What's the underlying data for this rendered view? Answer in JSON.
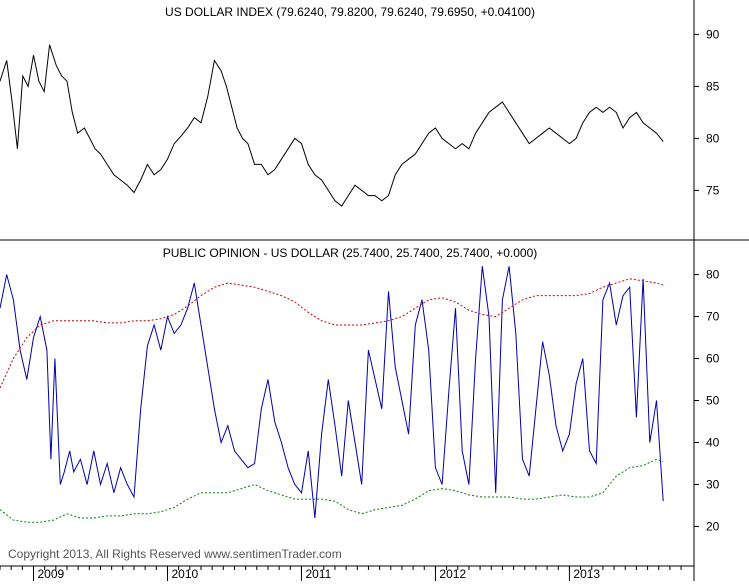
{
  "copyright": "Copyright 2013, All Rights Reserved  www.sentimenTrader.com",
  "chart_data": [
    {
      "type": "line",
      "title": "US DOLLAR INDEX (79.6240, 79.8200, 79.6240, 79.6950, +0.04100)",
      "ylim": [
        71,
        91
      ],
      "yticks": [
        75,
        80,
        85,
        90
      ],
      "xlim": [
        2008.75,
        2013.9
      ],
      "x_tick_labels": [
        "2009",
        "2010",
        "2011",
        "2012",
        "2013"
      ],
      "x_ticks": [
        2009,
        2010,
        2011,
        2012,
        2013
      ],
      "grid": false,
      "series": [
        {
          "color": "#000000",
          "x": [
            2008.75,
            2008.8,
            2008.84,
            2008.88,
            2008.92,
            2008.96,
            2009.0,
            2009.04,
            2009.08,
            2009.12,
            2009.17,
            2009.21,
            2009.25,
            2009.29,
            2009.33,
            2009.38,
            2009.42,
            2009.46,
            2009.5,
            2009.55,
            2009.6,
            2009.65,
            2009.7,
            2009.75,
            2009.8,
            2009.85,
            2009.9,
            2009.95,
            2010.0,
            2010.05,
            2010.1,
            2010.15,
            2010.2,
            2010.25,
            2010.3,
            2010.35,
            2010.4,
            2010.44,
            2010.48,
            2010.52,
            2010.56,
            2010.6,
            2010.65,
            2010.7,
            2010.75,
            2010.8,
            2010.85,
            2010.9,
            2010.95,
            2011.0,
            2011.05,
            2011.1,
            2011.15,
            2011.2,
            2011.25,
            2011.3,
            2011.35,
            2011.4,
            2011.45,
            2011.5,
            2011.55,
            2011.6,
            2011.65,
            2011.7,
            2011.75,
            2011.8,
            2011.85,
            2011.9,
            2011.95,
            2012.0,
            2012.05,
            2012.1,
            2012.15,
            2012.2,
            2012.25,
            2012.3,
            2012.35,
            2012.4,
            2012.45,
            2012.5,
            2012.55,
            2012.6,
            2012.65,
            2012.7,
            2012.75,
            2012.8,
            2012.85,
            2012.9,
            2012.95,
            2013.0,
            2013.05,
            2013.1,
            2013.15,
            2013.2,
            2013.25,
            2013.3,
            2013.35,
            2013.4,
            2013.45,
            2013.5,
            2013.55,
            2013.6,
            2013.65,
            2013.7
          ],
          "values": [
            85.5,
            87.5,
            83.5,
            79.0,
            86.0,
            85.0,
            88.0,
            85.5,
            84.5,
            89.0,
            87.0,
            86.0,
            85.5,
            82.5,
            80.5,
            81.0,
            80.0,
            79.0,
            78.5,
            77.5,
            76.5,
            76.0,
            75.5,
            74.8,
            76.0,
            77.5,
            76.5,
            77.0,
            78.0,
            79.5,
            80.2,
            81.0,
            82.0,
            81.5,
            84.0,
            87.5,
            86.5,
            85.0,
            83.0,
            81.0,
            80.0,
            79.5,
            77.5,
            77.5,
            76.5,
            77.0,
            78.0,
            79.0,
            80.0,
            79.5,
            77.5,
            76.5,
            76.0,
            75.0,
            74.0,
            73.5,
            74.5,
            75.5,
            75.0,
            74.5,
            74.5,
            74.0,
            74.5,
            76.5,
            77.5,
            78.0,
            78.5,
            79.5,
            80.5,
            81.0,
            80.0,
            79.5,
            79.0,
            79.5,
            79.0,
            80.5,
            81.5,
            82.5,
            83.0,
            83.5,
            82.5,
            81.5,
            80.5,
            79.5,
            80.0,
            80.5,
            81.0,
            80.5,
            80.0,
            79.5,
            80.0,
            81.5,
            82.5,
            83.0,
            82.5,
            83.0,
            82.5,
            81.0,
            82.0,
            82.5,
            81.5,
            81.0,
            80.5,
            79.7
          ]
        }
      ]
    },
    {
      "type": "line",
      "title": "PUBLIC OPINION - US DOLLAR (25.7400, 25.7400, 25.7400, +0.000)",
      "ylim": [
        12,
        83
      ],
      "yticks": [
        20,
        30,
        40,
        50,
        60,
        70,
        80
      ],
      "xlim": [
        2008.75,
        2013.9
      ],
      "x_tick_labels": [
        "2009",
        "2010",
        "2011",
        "2012",
        "2013"
      ],
      "x_ticks": [
        2009,
        2010,
        2011,
        2012,
        2013
      ],
      "grid": false,
      "series": [
        {
          "color": "#0000aa",
          "dashed": false,
          "x": [
            2008.75,
            2008.8,
            2008.85,
            2008.9,
            2008.95,
            2009.0,
            2009.05,
            2009.1,
            2009.13,
            2009.16,
            2009.2,
            2009.23,
            2009.27,
            2009.3,
            2009.35,
            2009.4,
            2009.45,
            2009.5,
            2009.55,
            2009.6,
            2009.65,
            2009.7,
            2009.75,
            2009.8,
            2009.85,
            2009.9,
            2009.95,
            2010.0,
            2010.05,
            2010.1,
            2010.15,
            2010.2,
            2010.25,
            2010.3,
            2010.35,
            2010.4,
            2010.45,
            2010.5,
            2010.55,
            2010.6,
            2010.65,
            2010.7,
            2010.75,
            2010.8,
            2010.85,
            2010.9,
            2010.95,
            2011.0,
            2011.05,
            2011.1,
            2011.15,
            2011.2,
            2011.25,
            2011.3,
            2011.35,
            2011.4,
            2011.45,
            2011.5,
            2011.55,
            2011.6,
            2011.65,
            2011.7,
            2011.75,
            2011.8,
            2011.85,
            2011.9,
            2011.95,
            2012.0,
            2012.05,
            2012.1,
            2012.15,
            2012.2,
            2012.25,
            2012.3,
            2012.35,
            2012.4,
            2012.45,
            2012.5,
            2012.55,
            2012.6,
            2012.65,
            2012.7,
            2012.75,
            2012.8,
            2012.85,
            2012.9,
            2012.95,
            2013.0,
            2013.05,
            2013.1,
            2013.15,
            2013.2,
            2013.25,
            2013.3,
            2013.35,
            2013.4,
            2013.45,
            2013.5,
            2013.55,
            2013.6,
            2013.65,
            2013.7
          ],
          "values": [
            72,
            80,
            74,
            62,
            55,
            65,
            70,
            62,
            36,
            60,
            30,
            33,
            38,
            33,
            36,
            30,
            38,
            30,
            35,
            28,
            34,
            30,
            27,
            48,
            63,
            68,
            62,
            70,
            66,
            68,
            72,
            78,
            68,
            58,
            48,
            40,
            44,
            38,
            36,
            34,
            35,
            48,
            55,
            45,
            40,
            34,
            30,
            28,
            38,
            22,
            42,
            55,
            44,
            32,
            50,
            40,
            30,
            62,
            55,
            48,
            76,
            58,
            50,
            42,
            68,
            74,
            62,
            34,
            30,
            52,
            72,
            38,
            30,
            60,
            82,
            70,
            28,
            74,
            82,
            66,
            36,
            32,
            48,
            64,
            56,
            44,
            38,
            42,
            54,
            60,
            38,
            35,
            74,
            78,
            68,
            75,
            77,
            46,
            79,
            40,
            50,
            26
          ]
        },
        {
          "color": "#cc0000",
          "dashed": true,
          "x": [
            2008.75,
            2008.85,
            2008.95,
            2009.05,
            2009.15,
            2009.25,
            2009.35,
            2009.45,
            2009.55,
            2009.65,
            2009.75,
            2009.85,
            2009.95,
            2010.05,
            2010.15,
            2010.25,
            2010.35,
            2010.45,
            2010.55,
            2010.65,
            2010.75,
            2010.85,
            2010.95,
            2011.05,
            2011.15,
            2011.25,
            2011.35,
            2011.45,
            2011.55,
            2011.65,
            2011.75,
            2011.85,
            2011.95,
            2012.05,
            2012.15,
            2012.25,
            2012.35,
            2012.45,
            2012.55,
            2012.65,
            2012.75,
            2012.85,
            2012.95,
            2013.05,
            2013.15,
            2013.25,
            2013.35,
            2013.45,
            2013.55,
            2013.65,
            2013.7
          ],
          "values": [
            53,
            60,
            65,
            68,
            69,
            69,
            69,
            69,
            68.5,
            68.5,
            69,
            69,
            69.5,
            70.5,
            72.5,
            75,
            77,
            78,
            77.5,
            77,
            76,
            75,
            73.5,
            71,
            69,
            68,
            68,
            68,
            68.5,
            69,
            70,
            72,
            74,
            74.5,
            73.5,
            71.5,
            70.5,
            70,
            72,
            74,
            75,
            75,
            75,
            75,
            75.5,
            77,
            78,
            79,
            78.5,
            78,
            77.5
          ]
        },
        {
          "color": "#008000",
          "dashed": true,
          "x": [
            2008.75,
            2008.85,
            2008.95,
            2009.05,
            2009.15,
            2009.25,
            2009.35,
            2009.45,
            2009.55,
            2009.65,
            2009.75,
            2009.85,
            2009.95,
            2010.05,
            2010.15,
            2010.25,
            2010.35,
            2010.45,
            2010.55,
            2010.65,
            2010.75,
            2010.85,
            2010.95,
            2011.05,
            2011.15,
            2011.25,
            2011.35,
            2011.45,
            2011.55,
            2011.65,
            2011.75,
            2011.85,
            2011.95,
            2012.05,
            2012.15,
            2012.25,
            2012.35,
            2012.45,
            2012.55,
            2012.65,
            2012.75,
            2012.85,
            2012.95,
            2013.05,
            2013.15,
            2013.25,
            2013.35,
            2013.45,
            2013.55,
            2013.65,
            2013.7
          ],
          "values": [
            24,
            21.5,
            21,
            21,
            21.5,
            23,
            22,
            22,
            22.5,
            22.5,
            23,
            23,
            23.5,
            24.5,
            26.5,
            28,
            28,
            28,
            29,
            30,
            28.5,
            27.5,
            26.5,
            26.5,
            26.5,
            26,
            24,
            23,
            24,
            24.5,
            25,
            26.5,
            28.5,
            29,
            28.5,
            27.5,
            27,
            27,
            27,
            26.5,
            26.5,
            27,
            27.5,
            27,
            27,
            28,
            32,
            34,
            34.5,
            36,
            35.5
          ]
        }
      ]
    }
  ]
}
